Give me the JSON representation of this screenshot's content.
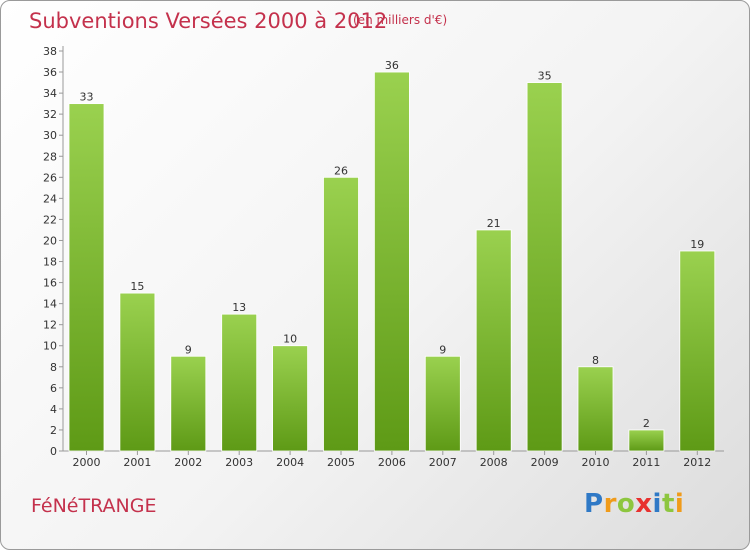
{
  "header": {
    "title": "Subventions Versées 2000 à 2012",
    "unit_note": "(en milliers d'€)"
  },
  "footer": {
    "commune": "FéNéTRANGE",
    "brand_letters": [
      {
        "ch": "P",
        "color": "#2f79c6"
      },
      {
        "ch": "r",
        "color": "#f09b1a"
      },
      {
        "ch": "o",
        "color": "#8dc63f"
      },
      {
        "ch": "x",
        "color": "#e8312f"
      },
      {
        "ch": "i",
        "color": "#2f79c6"
      },
      {
        "ch": "t",
        "color": "#8dc63f"
      },
      {
        "ch": "i",
        "color": "#f09b1a"
      }
    ]
  },
  "colors": {
    "title": "#c4314c",
    "bar_light": "#9ad14f",
    "bar_dark": "#5e9a16"
  },
  "chart_data": {
    "type": "bar",
    "title": "Subventions Versées 2000 à 2012",
    "subtitle": "(en milliers d'€)",
    "categories": [
      "2000",
      "2001",
      "2002",
      "2003",
      "2004",
      "2005",
      "2006",
      "2007",
      "2008",
      "2009",
      "2010",
      "2011",
      "2012"
    ],
    "values": [
      33,
      15,
      9,
      13,
      10,
      26,
      36,
      9,
      21,
      35,
      8,
      2,
      19
    ],
    "ylim": [
      0,
      38
    ],
    "yticks": [
      0,
      2,
      4,
      6,
      8,
      10,
      12,
      14,
      16,
      18,
      20,
      22,
      24,
      26,
      28,
      30,
      32,
      34,
      36,
      38
    ],
    "grid": false,
    "legend": "none"
  }
}
